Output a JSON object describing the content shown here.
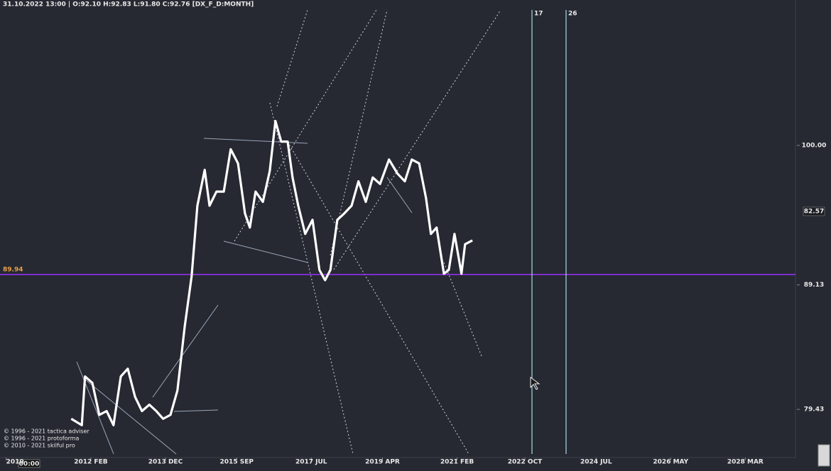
{
  "chart_data": {
    "type": "line",
    "header": "31.10.2022 13:00 | O:92.10 H:92.83 L:91.80 C:92.76  [DX_F_D:MONTH]",
    "x": [
      2011.6,
      2011.86,
      2011.94,
      2012.12,
      2012.29,
      2012.47,
      2012.64,
      2012.82,
      2012.99,
      2013.17,
      2013.34,
      2013.52,
      2013.69,
      2013.86,
      2014.04,
      2014.21,
      2014.39,
      2014.56,
      2014.7,
      2014.88,
      2015.0,
      2015.17,
      2015.35,
      2015.52,
      2015.7,
      2015.87,
      2015.99,
      2016.13,
      2016.31,
      2016.48,
      2016.62,
      2016.76,
      2016.92,
      2017.04,
      2017.18,
      2017.35,
      2017.53,
      2017.7,
      2017.84,
      2017.97,
      2018.14,
      2018.31,
      2018.49,
      2018.66,
      2018.84,
      2019.01,
      2019.19,
      2019.41,
      2019.62,
      2019.8,
      2019.97,
      2020.15,
      2020.32,
      2020.44,
      2020.58,
      2020.76,
      2020.88,
      2021.02,
      2021.19,
      2021.28,
      2021.46
    ],
    "values": [
      78.7,
      78.2,
      82.0,
      81.5,
      79.0,
      79.3,
      78.2,
      82.0,
      82.6,
      80.4,
      79.3,
      79.8,
      79.3,
      78.7,
      79.0,
      80.9,
      85.9,
      89.8,
      95.3,
      98.1,
      95.3,
      96.4,
      96.4,
      99.7,
      98.6,
      94.7,
      93.6,
      96.4,
      95.6,
      98.0,
      101.9,
      100.3,
      100.3,
      97.5,
      95.3,
      93.1,
      94.2,
      90.3,
      89.5,
      90.3,
      94.2,
      94.7,
      95.3,
      97.2,
      95.6,
      97.5,
      97.0,
      98.9,
      97.8,
      97.2,
      98.9,
      98.6,
      95.9,
      93.1,
      93.6,
      90.0,
      90.3,
      93.1,
      90.0,
      92.3,
      92.6
    ],
    "color": "#ffffff",
    "xlim": [
      2009.85,
      2029.4
    ],
    "xticks": [
      {
        "value": 2010,
        "label": "2010"
      },
      {
        "value": 2012.083,
        "label": "2012 FEB"
      },
      {
        "value": 2013.917,
        "label": "2013 DEC"
      },
      {
        "value": 2015.667,
        "label": "2015 SEP"
      },
      {
        "value": 2017.5,
        "label": "2017 JUL"
      },
      {
        "value": 2019.25,
        "label": "2019 APR"
      },
      {
        "value": 2021.083,
        "label": "2021 FEB"
      },
      {
        "value": 2022.75,
        "label": "2022 OCT"
      },
      {
        "value": 2024.5,
        "label": "2024 JUL"
      },
      {
        "value": 2026.333,
        "label": "2026 MAY"
      },
      {
        "value": 2028.167,
        "label": "2028 MAR"
      }
    ],
    "ylim": [
      75.68,
      111.33
    ],
    "yticks": [
      {
        "value": 100,
        "label": "100.00"
      },
      89.13,
      79.43
    ],
    "hline": {
      "value": 89.94,
      "color": "#9b30ff"
    },
    "price_tag": 82.57,
    "vline_labels": [
      "17",
      "26"
    ],
    "time_label": "00:00",
    "notes": [
      "© 1996 - 2021 tactica adviser",
      "© 1996 - 2021 protoforma",
      "© 2010 - 2021 skilful pro"
    ]
  }
}
